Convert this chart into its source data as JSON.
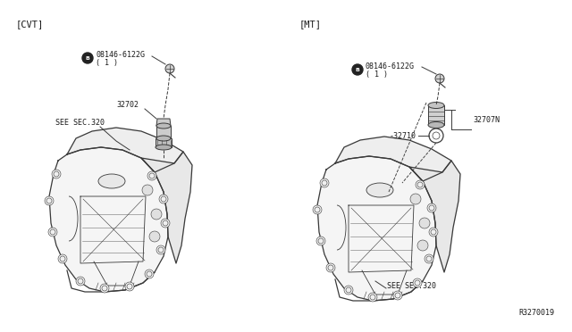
{
  "bg_color": "#ffffff",
  "fig_width": 6.4,
  "fig_height": 3.72,
  "dpi": 100,
  "title_cvt": "[CVT]",
  "title_mt": "[MT]",
  "part_label_1": "08146-6122G",
  "part_label_1b": "( 1 )",
  "part_label_32702": "32702",
  "part_label_see_sec320_left": "SEE SEC.320",
  "part_label_see_sec320_right": "SEE SEC.320",
  "part_label_32707n": "32707N",
  "part_label_32710": "32710",
  "part_label_ref": "R3270019",
  "line_color": "#3a3a3a",
  "text_color": "#1a1a1a",
  "annotation_fontsize": 6.0,
  "title_fontsize": 7.5
}
